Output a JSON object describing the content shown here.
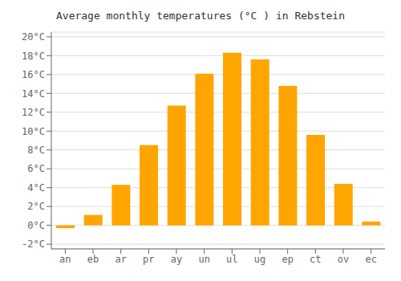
{
  "chart_data": {
    "type": "bar",
    "title": "Average monthly temperatures (°C ) in Rebstein",
    "categories": [
      "an",
      "eb",
      "ar",
      "pr",
      "ay",
      "un",
      "ul",
      "ug",
      "ep",
      "ct",
      "ov",
      "ec"
    ],
    "values": [
      -0.3,
      1.1,
      4.3,
      8.5,
      12.7,
      16.1,
      18.3,
      17.6,
      14.8,
      9.6,
      4.4,
      0.4
    ],
    "color": "#FFA500",
    "ylim": [
      -2.5,
      20.5
    ],
    "yticks": [
      {
        "value": -2,
        "label": "-2°C"
      },
      {
        "value": 0,
        "label": "0°C"
      },
      {
        "value": 2,
        "label": "2°C"
      },
      {
        "value": 4,
        "label": "4°C"
      },
      {
        "value": 6,
        "label": "6°C"
      },
      {
        "value": 8,
        "label": "8°C"
      },
      {
        "value": 10,
        "label": "10°C"
      },
      {
        "value": 12,
        "label": "12°C"
      },
      {
        "value": 14,
        "label": "14°C"
      },
      {
        "value": 16,
        "label": "16°C"
      },
      {
        "value": 18,
        "label": "18°C"
      },
      {
        "value": 20,
        "label": "20°C"
      }
    ],
    "grid": true
  }
}
